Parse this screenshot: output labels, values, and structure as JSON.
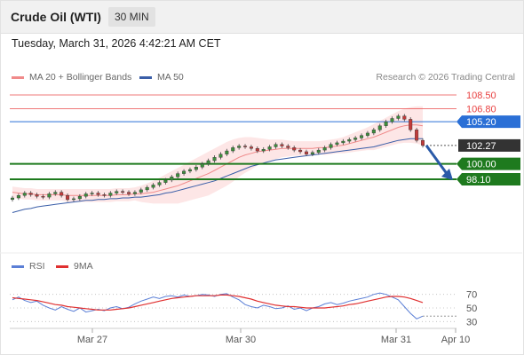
{
  "header": {
    "title": "Crude Oil (WTI)",
    "interval": "30 MIN",
    "timestamp": "Tuesday, March 31, 2026 4:42:21 AM CET"
  },
  "legend": {
    "ma20_label": "MA 20 + Bollinger Bands",
    "ma50_label": "MA 50",
    "copyright": "Research © 2026 Trading Central",
    "ma20_color": "#f08a8a",
    "ma50_color": "#3a5ea8"
  },
  "rsi_legend": {
    "rsi_label": "RSI",
    "ma9_label": "9MA",
    "rsi_color": "#5b7fd6",
    "ma9_color": "#e03030"
  },
  "chart_data": {
    "type": "candlestick",
    "y_range": [
      95.0,
      110.0
    ],
    "x_ticks": [
      "Mar 27",
      "Mar 30",
      "Mar 31",
      "Apr 10"
    ],
    "levels": [
      {
        "label": "108.50",
        "value": 108.5,
        "kind": "resistance",
        "color": "#e84040"
      },
      {
        "label": "106.80",
        "value": 106.8,
        "kind": "resistance",
        "color": "#e84040"
      },
      {
        "label": "105.20",
        "value": 105.2,
        "kind": "pivot",
        "color": "#2a6fd6"
      },
      {
        "label": "102.27",
        "value": 102.27,
        "kind": "last",
        "color": "#333333"
      },
      {
        "label": "100.00",
        "value": 100.0,
        "kind": "support",
        "color": "#1e7a1e"
      },
      {
        "label": "98.10",
        "value": 98.1,
        "kind": "support",
        "color": "#1e7a1e"
      }
    ],
    "close": [
      95.8,
      96.1,
      96.4,
      96.2,
      96.0,
      95.9,
      96.3,
      96.5,
      96.1,
      95.6,
      95.7,
      96.0,
      96.3,
      96.4,
      96.2,
      96.1,
      96.4,
      96.6,
      96.5,
      96.3,
      96.5,
      96.8,
      97.1,
      97.4,
      97.7,
      98.0,
      98.4,
      98.8,
      99.1,
      99.3,
      99.6,
      100.0,
      100.4,
      100.8,
      101.2,
      101.6,
      102.0,
      102.2,
      102.1,
      101.9,
      101.6,
      101.8,
      102.1,
      102.4,
      102.2,
      102.0,
      101.7,
      101.5,
      101.2,
      101.4,
      101.7,
      102.0,
      102.4,
      102.6,
      102.8,
      103.0,
      103.2,
      103.5,
      103.8,
      104.2,
      104.7,
      105.2,
      105.6,
      105.9,
      105.5,
      104.2,
      102.9,
      102.27
    ],
    "open": [
      95.6,
      95.8,
      96.1,
      96.4,
      96.2,
      96.0,
      95.9,
      96.3,
      96.5,
      96.1,
      95.6,
      95.7,
      96.0,
      96.3,
      96.4,
      96.2,
      96.1,
      96.4,
      96.6,
      96.5,
      96.3,
      96.5,
      96.8,
      97.1,
      97.4,
      97.7,
      98.0,
      98.4,
      98.8,
      99.1,
      99.3,
      99.6,
      100.0,
      100.4,
      100.8,
      101.2,
      101.6,
      102.0,
      102.2,
      102.1,
      101.9,
      101.6,
      101.8,
      102.1,
      102.4,
      102.2,
      102.0,
      101.7,
      101.5,
      101.2,
      101.4,
      101.7,
      102.0,
      102.4,
      102.6,
      102.8,
      103.0,
      103.2,
      103.5,
      103.8,
      104.2,
      104.7,
      105.2,
      105.6,
      105.9,
      105.5,
      104.2,
      102.9
    ],
    "ma20": [
      96.5,
      96.4,
      96.3,
      96.3,
      96.2,
      96.2,
      96.2,
      96.2,
      96.2,
      96.1,
      96.1,
      96.1,
      96.1,
      96.1,
      96.1,
      96.1,
      96.1,
      96.2,
      96.2,
      96.2,
      96.3,
      96.3,
      96.4,
      96.5,
      96.7,
      96.9,
      97.1,
      97.3,
      97.6,
      97.9,
      98.2,
      98.5,
      98.8,
      99.2,
      99.6,
      100.0,
      100.4,
      100.8,
      101.1,
      101.3,
      101.5,
      101.6,
      101.7,
      101.8,
      101.9,
      101.9,
      101.9,
      101.9,
      101.9,
      101.9,
      102.0,
      102.0,
      102.1,
      102.2,
      102.3,
      102.5,
      102.7,
      102.9,
      103.1,
      103.3,
      103.6,
      103.9,
      104.2,
      104.5,
      104.7,
      104.8,
      104.8,
      104.7
    ],
    "ma50": [
      94.0,
      94.2,
      94.4,
      94.5,
      94.7,
      94.8,
      94.9,
      95.0,
      95.1,
      95.2,
      95.3,
      95.4,
      95.5,
      95.5,
      95.6,
      95.6,
      95.7,
      95.7,
      95.8,
      95.8,
      95.9,
      95.9,
      96.0,
      96.1,
      96.2,
      96.4,
      96.5,
      96.7,
      96.9,
      97.1,
      97.3,
      97.5,
      97.7,
      97.9,
      98.2,
      98.5,
      98.8,
      99.1,
      99.4,
      99.7,
      99.9,
      100.1,
      100.3,
      100.5,
      100.6,
      100.7,
      100.8,
      100.9,
      101.0,
      101.1,
      101.2,
      101.3,
      101.4,
      101.5,
      101.6,
      101.7,
      101.8,
      101.9,
      102.0,
      102.1,
      102.3,
      102.5,
      102.7,
      102.9,
      103.0,
      103.1,
      103.1,
      103.1
    ],
    "bb_upper": [
      97.2,
      97.1,
      97.0,
      97.0,
      96.9,
      96.9,
      96.9,
      96.9,
      96.9,
      96.9,
      96.9,
      96.9,
      96.9,
      96.9,
      96.9,
      96.9,
      96.9,
      97.0,
      97.0,
      97.0,
      97.1,
      97.3,
      97.6,
      97.9,
      98.3,
      98.7,
      99.1,
      99.5,
      99.9,
      100.3,
      100.7,
      101.1,
      101.5,
      101.9,
      102.3,
      102.7,
      103.0,
      103.2,
      103.3,
      103.3,
      103.2,
      103.1,
      103.0,
      103.0,
      103.0,
      102.9,
      102.8,
      102.8,
      102.8,
      102.8,
      102.8,
      102.9,
      103.0,
      103.1,
      103.3,
      103.6,
      103.9,
      104.2,
      104.5,
      104.9,
      105.3,
      105.7,
      106.1,
      106.5,
      106.8,
      107.0,
      107.1,
      107.1
    ],
    "bb_lower": [
      95.8,
      95.7,
      95.6,
      95.6,
      95.5,
      95.5,
      95.5,
      95.5,
      95.5,
      95.3,
      95.3,
      95.3,
      95.3,
      95.3,
      95.3,
      95.3,
      95.3,
      95.4,
      95.4,
      95.4,
      95.5,
      95.3,
      95.2,
      95.1,
      95.1,
      95.1,
      95.1,
      95.1,
      95.3,
      95.5,
      95.7,
      95.9,
      96.1,
      96.5,
      96.9,
      97.3,
      97.8,
      98.4,
      98.9,
      99.3,
      99.8,
      100.1,
      100.4,
      100.6,
      100.8,
      100.9,
      101.0,
      101.0,
      101.0,
      101.0,
      101.2,
      101.1,
      101.2,
      101.3,
      101.3,
      101.4,
      101.5,
      101.6,
      101.7,
      101.7,
      101.9,
      102.1,
      102.3,
      102.5,
      102.6,
      102.6,
      102.5,
      102.3
    ],
    "rsi": {
      "range": [
        20,
        80
      ],
      "levels": [
        "70",
        "50",
        "30"
      ],
      "rsi": [
        62,
        66,
        61,
        58,
        60,
        54,
        50,
        47,
        52,
        48,
        45,
        50,
        44,
        46,
        48,
        46,
        50,
        52,
        49,
        51,
        56,
        60,
        63,
        66,
        64,
        67,
        68,
        66,
        69,
        67,
        68,
        70,
        69,
        67,
        70,
        71,
        66,
        62,
        55,
        52,
        50,
        54,
        52,
        49,
        50,
        53,
        48,
        50,
        46,
        50,
        52,
        56,
        58,
        55,
        57,
        60,
        62,
        64,
        66,
        70,
        72,
        70,
        66,
        62,
        52,
        42,
        34,
        38
      ],
      "ma9": [
        65,
        64,
        63,
        62,
        61,
        59,
        57,
        55,
        54,
        52,
        51,
        50,
        49,
        48,
        47,
        47,
        47,
        48,
        49,
        50,
        52,
        54,
        56,
        58,
        60,
        62,
        64,
        65,
        66,
        67,
        68,
        68,
        68,
        68,
        69,
        69,
        68,
        67,
        65,
        63,
        60,
        58,
        56,
        54,
        53,
        52,
        52,
        51,
        50,
        50,
        50,
        50,
        51,
        52,
        53,
        55,
        56,
        58,
        60,
        62,
        64,
        66,
        67,
        67,
        66,
        64,
        61,
        58
      ]
    }
  }
}
